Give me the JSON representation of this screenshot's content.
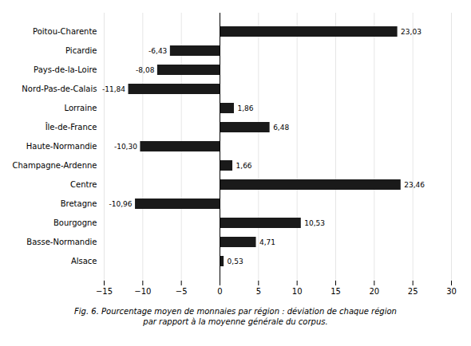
{
  "chart_data": {
    "type": "bar",
    "orientation": "horizontal",
    "categories": [
      "Alsace",
      "Basse-Normandie",
      "Bourgogne",
      "Bretagne",
      "Centre",
      "Champagne-Ardenne",
      "Haute-Normandie",
      "Île-de-France",
      "Lorraine",
      "Nord-Pas-de-Calais",
      "Pays-de-la-Loire",
      "Picardie",
      "Poitou-Charente"
    ],
    "values": [
      0.53,
      4.71,
      10.53,
      -10.96,
      23.46,
      1.66,
      -10.3,
      6.48,
      1.86,
      -11.84,
      -8.08,
      -6.43,
      23.03
    ],
    "value_labels": [
      "0,53",
      "4,71",
      "10,53",
      "-10,96",
      "23,46",
      "1,66",
      "-10,30",
      "6,48",
      "1,86",
      "-11,84",
      "-8,08",
      "-6,43",
      "23,03"
    ],
    "data_labels": true,
    "color": "#1a1a1a",
    "xlim": [
      -15,
      30
    ],
    "xticks": [
      -15,
      -10,
      -5,
      0,
      5,
      10,
      15,
      20,
      25,
      30
    ],
    "grid": true,
    "annotations": [
      "Fig. 6. Pourcentage moyen de monnaies par région : déviation de chaque région",
      "par rapport à la moyenne générale du corpus."
    ]
  }
}
